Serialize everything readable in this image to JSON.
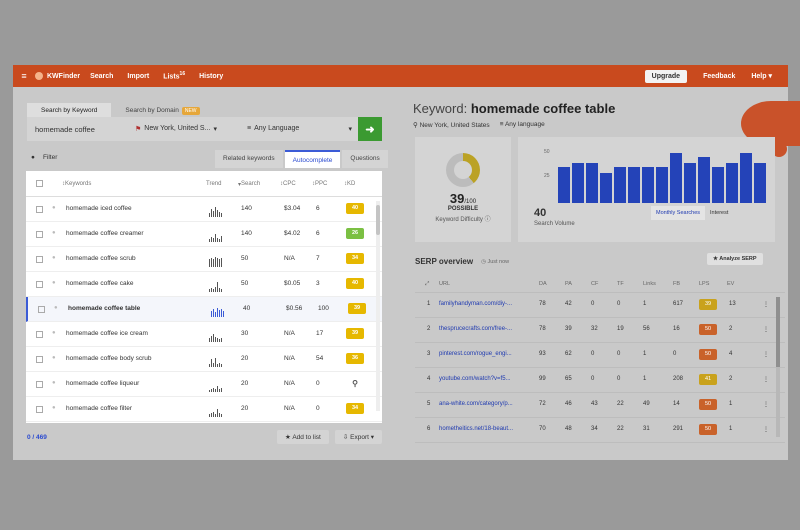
{
  "topbar": {
    "menu_icon": "hamburger-icon",
    "app_name": "KWFinder",
    "nav": [
      {
        "label": "Search"
      },
      {
        "label": "Import"
      },
      {
        "label": "Lists"
      },
      {
        "label": "History"
      }
    ],
    "lists_count": "16",
    "upgrade": "Upgrade",
    "feedback": "Feedback",
    "help": "Help"
  },
  "search": {
    "tabs": {
      "by_keyword": "Search by Keyword",
      "by_domain": "Search by Domain",
      "new_badge": "NEW"
    },
    "keyword": "homemade coffee",
    "location": "New York, United S...",
    "language": "Any Language"
  },
  "filter_label": "Filter",
  "subtabs": {
    "related": "Related keywords",
    "autocomplete": "Autocomplete",
    "questions": "Questions"
  },
  "table": {
    "headers": {
      "keywords": "Keywords",
      "trend": "Trend",
      "search": "Search",
      "cpc": "CPC",
      "ppc": "PPC",
      "kd": "KD"
    },
    "rows": [
      {
        "keyword": "homemade iced coffee",
        "search": "140",
        "cpc": "$3.04",
        "ppc": "6",
        "kd": "40",
        "kd_color": "#e6b800"
      },
      {
        "keyword": "homemade coffee creamer",
        "search": "140",
        "cpc": "$4.02",
        "ppc": "6",
        "kd": "26",
        "kd_color": "#7bc043"
      },
      {
        "keyword": "homemade coffee scrub",
        "search": "50",
        "cpc": "N/A",
        "ppc": "7",
        "kd": "34",
        "kd_color": "#e6b800"
      },
      {
        "keyword": "homemade coffee cake",
        "search": "50",
        "cpc": "$0.05",
        "ppc": "3",
        "kd": "40",
        "kd_color": "#e6b800"
      },
      {
        "keyword": "homemade coffee table",
        "search": "40",
        "cpc": "$0.56",
        "ppc": "100",
        "kd": "39",
        "kd_color": "#e6b800"
      },
      {
        "keyword": "homemade coffee ice cream",
        "search": "30",
        "cpc": "N/A",
        "ppc": "17",
        "kd": "39",
        "kd_color": "#e6b800"
      },
      {
        "keyword": "homemade coffee body scrub",
        "search": "20",
        "cpc": "N/A",
        "ppc": "54",
        "kd": "36",
        "kd_color": "#e6b800"
      },
      {
        "keyword": "homemade coffee liqueur",
        "search": "20",
        "cpc": "N/A",
        "ppc": "0",
        "kd": "",
        "kd_color": ""
      },
      {
        "keyword": "homemade coffee filter",
        "search": "20",
        "cpc": "N/A",
        "ppc": "0",
        "kd": "34",
        "kd_color": "#e6b800"
      }
    ]
  },
  "footer": {
    "count": "0 / 469",
    "add_to_list": "Add to list",
    "export": "Export"
  },
  "detail": {
    "title_prefix": "Keyword:",
    "keyword": "homemade coffee table",
    "location": "New York, United States",
    "language": "Any language",
    "kd_value": "39",
    "kd_max": "/100",
    "kd_word": "POSSIBLE",
    "kd_label": "Keyword Difficulty",
    "sv_value": "40",
    "sv_label": "Search Volume",
    "sv_ticks": [
      "50",
      "25"
    ],
    "sv_tabs": {
      "monthly": "Monthly Searches",
      "interest": "Interest"
    }
  },
  "chart_data": {
    "type": "bar",
    "values": [
      36,
      40,
      40,
      30,
      36,
      36,
      36,
      36,
      50,
      40,
      46,
      36,
      40,
      50,
      40
    ]
  },
  "serp": {
    "title": "SERP overview",
    "time_label": "Just now",
    "analyze": "Analyze SERP",
    "headers": {
      "url": "URL",
      "da": "DA",
      "pa": "PA",
      "cf": "CF",
      "tf": "TF",
      "links": "Links",
      "fb": "FB",
      "lps": "LPS",
      "ev": "EV"
    },
    "rows": [
      {
        "n": "1",
        "url": "familyhandyman.com/diy-...",
        "da": "78",
        "pa": "42",
        "cf": "0",
        "tf": "0",
        "links": "1",
        "fb": "617",
        "lps": "39",
        "lps_color": "#c9a21c",
        "ev": "13"
      },
      {
        "n": "2",
        "url": "thesprucecrafts.com/free-...",
        "da": "78",
        "pa": "39",
        "cf": "32",
        "tf": "19",
        "links": "56",
        "fb": "16",
        "lps": "50",
        "lps_color": "#c9622a",
        "ev": "2"
      },
      {
        "n": "3",
        "url": "pinterest.com/rogue_engi...",
        "da": "93",
        "pa": "62",
        "cf": "0",
        "tf": "0",
        "links": "1",
        "fb": "0",
        "lps": "50",
        "lps_color": "#c9622a",
        "ev": "4"
      },
      {
        "n": "4",
        "url": "youtube.com/watch?v=f5...",
        "da": "99",
        "pa": "65",
        "cf": "0",
        "tf": "0",
        "links": "1",
        "fb": "208",
        "lps": "41",
        "lps_color": "#c9a21c",
        "ev": "2"
      },
      {
        "n": "5",
        "url": "ana-white.com/category/p...",
        "da": "72",
        "pa": "46",
        "cf": "43",
        "tf": "22",
        "links": "49",
        "fb": "14",
        "lps": "50",
        "lps_color": "#c9622a",
        "ev": "1"
      },
      {
        "n": "6",
        "url": "hometheitics.net/18-beaut...",
        "da": "70",
        "pa": "48",
        "cf": "34",
        "tf": "22",
        "links": "31",
        "fb": "291",
        "lps": "50",
        "lps_color": "#c9622a",
        "ev": "1"
      }
    ]
  }
}
